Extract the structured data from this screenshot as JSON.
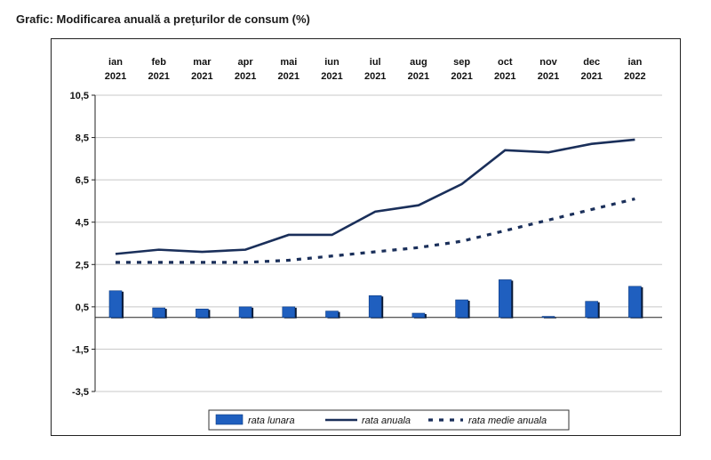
{
  "caption": "Grafic: Modificarea anuală a prețurilor de consum (%)",
  "chart_data": {
    "type": "bar+line",
    "categories": [
      [
        "ian",
        "2021"
      ],
      [
        "feb",
        "2021"
      ],
      [
        "mar",
        "2021"
      ],
      [
        "apr",
        "2021"
      ],
      [
        "mai",
        "2021"
      ],
      [
        "iun",
        "2021"
      ],
      [
        "iul",
        "2021"
      ],
      [
        "aug",
        "2021"
      ],
      [
        "sep",
        "2021"
      ],
      [
        "oct",
        "2021"
      ],
      [
        "nov",
        "2021"
      ],
      [
        "dec",
        "2021"
      ],
      [
        "ian",
        "2022"
      ]
    ],
    "yticks": [
      "10,5",
      "8,5",
      "6,5",
      "4,5",
      "2,5",
      "0,5",
      "-1,5",
      "-3,5"
    ],
    "ytick_values": [
      10.5,
      8.5,
      6.5,
      4.5,
      2.5,
      0.5,
      -1.5,
      -3.5
    ],
    "ylim": [
      -3.5,
      10.5
    ],
    "grid": true,
    "legend_position": "bottom",
    "series": [
      {
        "name": "rata lunara",
        "kind": "bar",
        "color": "#1f5fbf",
        "values": [
          1.26,
          0.45,
          0.4,
          0.5,
          0.5,
          0.3,
          1.03,
          0.2,
          0.83,
          1.78,
          0.05,
          0.76,
          1.47
        ]
      },
      {
        "name": "rata anuala",
        "kind": "line",
        "color": "#1a2f5a",
        "values": [
          3.0,
          3.2,
          3.1,
          3.2,
          3.9,
          3.9,
          5.0,
          5.3,
          6.3,
          7.9,
          7.8,
          8.2,
          8.4
        ]
      },
      {
        "name": "rata medie anuala",
        "kind": "dotted-line",
        "color": "#1a2f5a",
        "values": [
          2.6,
          2.6,
          2.6,
          2.6,
          2.7,
          2.9,
          3.1,
          3.3,
          3.6,
          4.1,
          4.6,
          5.1,
          5.6
        ]
      }
    ]
  }
}
